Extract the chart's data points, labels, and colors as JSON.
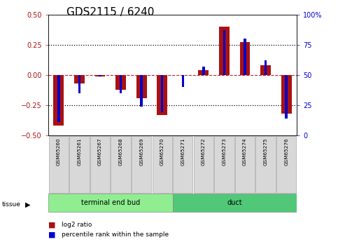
{
  "title": "GDS2115 / 6240",
  "samples": [
    "GSM65260",
    "GSM65261",
    "GSM65267",
    "GSM65268",
    "GSM65269",
    "GSM65270",
    "GSM65271",
    "GSM65272",
    "GSM65273",
    "GSM65274",
    "GSM65275",
    "GSM65276"
  ],
  "log2_ratio": [
    -0.42,
    -0.07,
    -0.01,
    -0.12,
    -0.19,
    -0.33,
    0.0,
    0.04,
    0.4,
    0.27,
    0.08,
    -0.32
  ],
  "percentile_rank": [
    11,
    35,
    49,
    35,
    24,
    19,
    40,
    57,
    87,
    80,
    62,
    14
  ],
  "tissue_groups": [
    {
      "label": "terminal end bud",
      "start": 0,
      "end": 6,
      "color": "#90EE90"
    },
    {
      "label": "duct",
      "start": 6,
      "end": 12,
      "color": "#50C878"
    }
  ],
  "bar_color_red": "#AA1111",
  "bar_color_blue": "#0000CC",
  "ylim_left": [
    -0.5,
    0.5
  ],
  "ylim_right": [
    0,
    100
  ],
  "yticks_left": [
    -0.5,
    -0.25,
    0.0,
    0.25,
    0.5
  ],
  "yticks_right": [
    0,
    25,
    50,
    75,
    100
  ],
  "yticklabels_right": [
    "0",
    "25",
    "50",
    "75",
    "100%"
  ],
  "background_color": "#ffffff",
  "plot_bg_color": "#ffffff",
  "title_fontsize": 11,
  "tick_fontsize": 7,
  "label_fontsize": 7
}
